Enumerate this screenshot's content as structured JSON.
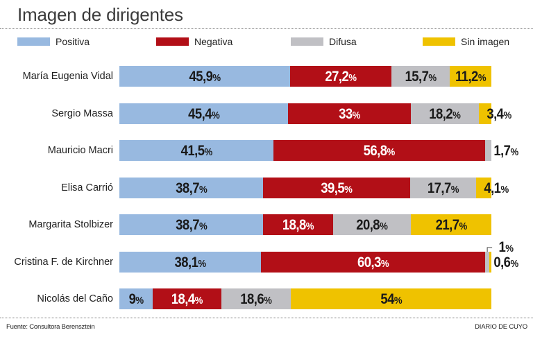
{
  "chart_data": {
    "type": "bar",
    "orientation": "horizontal",
    "stacked": true,
    "title": "Imagen de dirigentes",
    "xlabel": "",
    "ylabel": "",
    "xlim": [
      0,
      100
    ],
    "grid": false,
    "legend_position": "top",
    "categories": [
      "María Eugenia Vidal",
      "Sergio Massa",
      "Mauricio Macri",
      "Elisa Carrió",
      "Margarita Stolbizer",
      "Cristina F. de Kirchner",
      "Nicolás del Caño"
    ],
    "series": [
      {
        "name": "Positiva",
        "color": "#98b9e0",
        "text_color": "#1a1a1a",
        "values": [
          45.9,
          45.4,
          41.5,
          38.7,
          38.7,
          38.1,
          9
        ],
        "labels": [
          "45,9",
          "45,4",
          "41,5",
          "38,7",
          "38,7",
          "38,1",
          "9"
        ]
      },
      {
        "name": "Negativa",
        "color": "#b20f17",
        "text_color": "#ffffff",
        "values": [
          27.2,
          33,
          56.8,
          39.5,
          18.8,
          60.3,
          18.4
        ],
        "labels": [
          "27,2",
          "33",
          "56,8",
          "39,5",
          "18,8",
          "60,3",
          "18,4"
        ]
      },
      {
        "name": "Difusa",
        "color": "#c0c0c4",
        "text_color": "#1a1a1a",
        "values": [
          15.7,
          18.2,
          1.7,
          17.7,
          20.8,
          1,
          18.6
        ],
        "labels": [
          "15,7",
          "18,2",
          "1,7",
          "17,7",
          "20,8",
          "1",
          "18,6"
        ]
      },
      {
        "name": "Sin imagen",
        "color": "#efc200",
        "text_color": "#1a1a1a",
        "values": [
          11.2,
          3.4,
          0,
          4.1,
          21.7,
          0.6,
          54
        ],
        "labels": [
          "11,2",
          "3,4",
          "",
          "4,1",
          "21,7",
          "0,6",
          "54"
        ]
      }
    ],
    "percent_suffix": "%"
  },
  "footer": {
    "source": "Fuente: Consultora Berensztein",
    "publisher": "DIARIO DE CUYO"
  }
}
